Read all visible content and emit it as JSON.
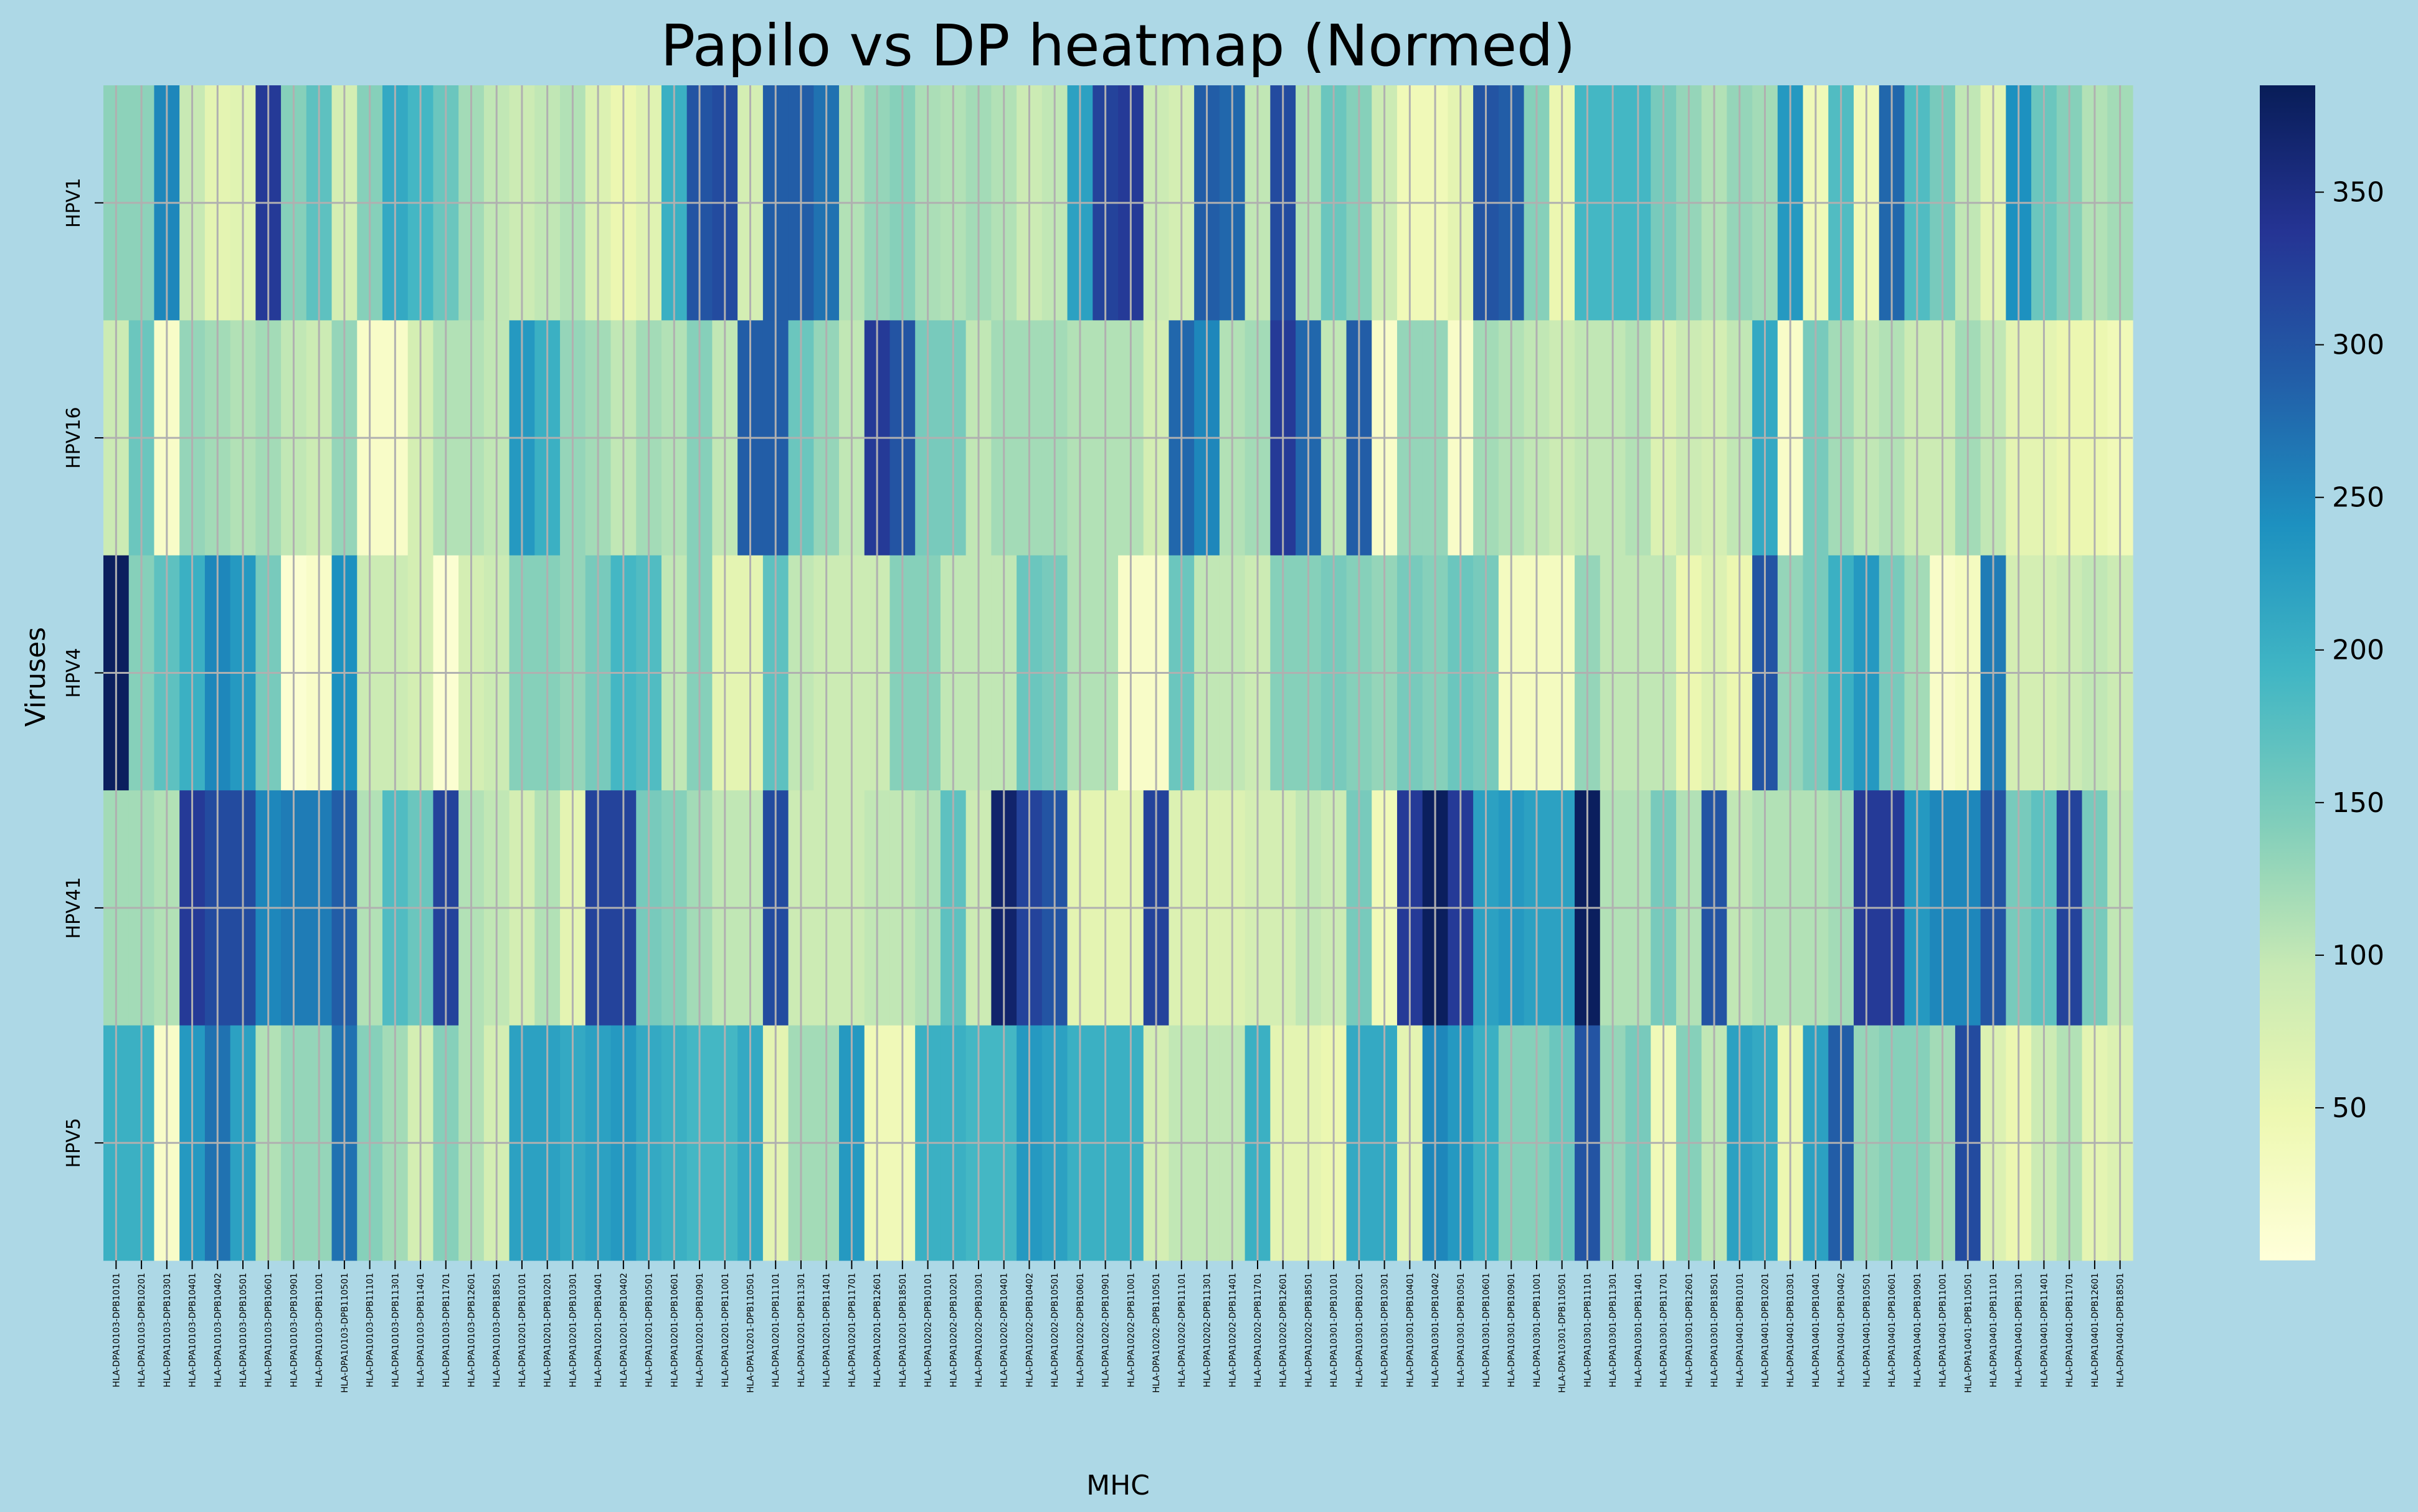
{
  "chart_data": {
    "type": "heatmap",
    "title": "Papilo vs DP heatmap (Normed)",
    "xlabel": "MHC",
    "ylabel": "Viruses",
    "rows": [
      "HPV1",
      "HPV16",
      "HPV4",
      "HPV41",
      "HPV5"
    ],
    "columns": [
      "HLA-DPA10103-DPB10101",
      "HLA-DPA10103-DPB10201",
      "HLA-DPA10103-DPB10301",
      "HLA-DPA10103-DPB10401",
      "HLA-DPA10103-DPB10402",
      "HLA-DPA10103-DPB10501",
      "HLA-DPA10103-DPB10601",
      "HLA-DPA10103-DPB10901",
      "HLA-DPA10103-DPB11001",
      "HLA-DPA10103-DPB110501",
      "HLA-DPA10103-DPB11101",
      "HLA-DPA10103-DPB11301",
      "HLA-DPA10103-DPB11401",
      "HLA-DPA10103-DPB11701",
      "HLA-DPA10103-DPB12601",
      "HLA-DPA10103-DPB18501",
      "HLA-DPA10201-DPB10101",
      "HLA-DPA10201-DPB10201",
      "HLA-DPA10201-DPB10301",
      "HLA-DPA10201-DPB10401",
      "HLA-DPA10201-DPB10402",
      "HLA-DPA10201-DPB10501",
      "HLA-DPA10201-DPB10601",
      "HLA-DPA10201-DPB10901",
      "HLA-DPA10201-DPB11001",
      "HLA-DPA10201-DPB110501",
      "HLA-DPA10201-DPB11101",
      "HLA-DPA10201-DPB11301",
      "HLA-DPA10201-DPB11401",
      "HLA-DPA10201-DPB11701",
      "HLA-DPA10201-DPB12601",
      "HLA-DPA10201-DPB18501",
      "HLA-DPA10202-DPB10101",
      "HLA-DPA10202-DPB10201",
      "HLA-DPA10202-DPB10301",
      "HLA-DPA10202-DPB10401",
      "HLA-DPA10202-DPB10402",
      "HLA-DPA10202-DPB10501",
      "HLA-DPA10202-DPB10601",
      "HLA-DPA10202-DPB10901",
      "HLA-DPA10202-DPB11001",
      "HLA-DPA10202-DPB110501",
      "HLA-DPA10202-DPB11101",
      "HLA-DPA10202-DPB11301",
      "HLA-DPA10202-DPB11401",
      "HLA-DPA10202-DPB11701",
      "HLA-DPA10202-DPB12601",
      "HLA-DPA10202-DPB18501",
      "HLA-DPA10301-DPB10101",
      "HLA-DPA10301-DPB10201",
      "HLA-DPA10301-DPB10301",
      "HLA-DPA10301-DPB10401",
      "HLA-DPA10301-DPB10402",
      "HLA-DPA10301-DPB10501",
      "HLA-DPA10301-DPB10601",
      "HLA-DPA10301-DPB10901",
      "HLA-DPA10301-DPB11001",
      "HLA-DPA10301-DPB110501",
      "HLA-DPA10301-DPB11101",
      "HLA-DPA10301-DPB11301",
      "HLA-DPA10301-DPB11401",
      "HLA-DPA10301-DPB11701",
      "HLA-DPA10301-DPB12601",
      "HLA-DPA10301-DPB18501",
      "HLA-DPA10401-DPB10101",
      "HLA-DPA10401-DPB10201",
      "HLA-DPA10401-DPB10301",
      "HLA-DPA10401-DPB10401",
      "HLA-DPA10401-DPB10402",
      "HLA-DPA10401-DPB10501",
      "HLA-DPA10401-DPB10601",
      "HLA-DPA10401-DPB10901",
      "HLA-DPA10401-DPB11001",
      "HLA-DPA10401-DPB110501",
      "HLA-DPA10401-DPB11101",
      "HLA-DPA10401-DPB11301",
      "HLA-DPA10401-DPB11401",
      "HLA-DPA10401-DPB11701",
      "HLA-DPA10401-DPB12601",
      "HLA-DPA10401-DPB18501"
    ],
    "values": [
      [
        135,
        135,
        250,
        95,
        60,
        65,
        330,
        140,
        170,
        80,
        140,
        210,
        190,
        160,
        120,
        100,
        90,
        100,
        110,
        70,
        50,
        65,
        200,
        300,
        310,
        80,
        290,
        290,
        270,
        110,
        130,
        140,
        115,
        110,
        120,
        110,
        90,
        100,
        220,
        320,
        330,
        90,
        80,
        290,
        280,
        100,
        310,
        110,
        160,
        140,
        90,
        40,
        40,
        60,
        300,
        290,
        140,
        50,
        190,
        190,
        190,
        150,
        130,
        110,
        130,
        120,
        230,
        40,
        180,
        40,
        280,
        180,
        150,
        100,
        60,
        240,
        160,
        140,
        110,
        120
      ],
      [
        90,
        160,
        20,
        130,
        120,
        110,
        120,
        100,
        90,
        130,
        20,
        20,
        80,
        110,
        110,
        100,
        230,
        200,
        130,
        120,
        100,
        120,
        110,
        140,
        100,
        290,
        290,
        160,
        130,
        100,
        330,
        300,
        150,
        150,
        100,
        120,
        120,
        120,
        110,
        110,
        110,
        80,
        280,
        250,
        110,
        120,
        330,
        280,
        100,
        290,
        20,
        130,
        130,
        20,
        120,
        110,
        100,
        90,
        100,
        100,
        110,
        70,
        90,
        80,
        100,
        210,
        20,
        150,
        120,
        100,
        110,
        90,
        90,
        120,
        100,
        60,
        60,
        50,
        50,
        40
      ],
      [
        380,
        140,
        170,
        200,
        250,
        230,
        150,
        10,
        20,
        240,
        90,
        90,
        80,
        10,
        80,
        90,
        140,
        140,
        130,
        150,
        190,
        180,
        100,
        140,
        60,
        60,
        170,
        100,
        90,
        90,
        90,
        140,
        140,
        100,
        100,
        100,
        160,
        150,
        110,
        110,
        20,
        20,
        160,
        100,
        100,
        90,
        140,
        140,
        150,
        140,
        130,
        150,
        140,
        160,
        150,
        30,
        30,
        30,
        130,
        100,
        100,
        100,
        50,
        70,
        50,
        300,
        130,
        150,
        200,
        230,
        150,
        120,
        20,
        30,
        260,
        80,
        80,
        90,
        100,
        90
      ],
      [
        120,
        120,
        110,
        330,
        310,
        310,
        250,
        260,
        260,
        290,
        110,
        180,
        160,
        320,
        110,
        100,
        80,
        110,
        60,
        320,
        320,
        150,
        140,
        120,
        100,
        100,
        310,
        90,
        90,
        90,
        100,
        100,
        110,
        170,
        90,
        370,
        320,
        300,
        60,
        60,
        60,
        320,
        70,
        70,
        70,
        80,
        80,
        100,
        90,
        150,
        40,
        330,
        380,
        330,
        220,
        230,
        220,
        220,
        380,
        110,
        110,
        150,
        110,
        300,
        100,
        110,
        110,
        110,
        120,
        330,
        330,
        230,
        250,
        250,
        300,
        150,
        170,
        320,
        150,
        100
      ],
      [
        200,
        200,
        20,
        230,
        270,
        220,
        110,
        130,
        130,
        270,
        140,
        120,
        80,
        140,
        110,
        80,
        220,
        220,
        210,
        220,
        230,
        210,
        200,
        190,
        190,
        210,
        60,
        120,
        120,
        230,
        40,
        40,
        200,
        200,
        190,
        190,
        230,
        220,
        200,
        200,
        200,
        80,
        100,
        100,
        100,
        200,
        60,
        60,
        50,
        210,
        210,
        60,
        250,
        230,
        200,
        140,
        140,
        160,
        300,
        130,
        150,
        40,
        140,
        100,
        220,
        210,
        50,
        220,
        290,
        130,
        140,
        140,
        120,
        310,
        70,
        50,
        90,
        110,
        60,
        70
      ]
    ],
    "vmin": 0,
    "vmax": 385,
    "cmap": "YlGnBu",
    "colorbar_ticks": [
      50,
      100,
      150,
      200,
      250,
      300,
      350
    ],
    "grid": true,
    "colorbar": "right"
  }
}
